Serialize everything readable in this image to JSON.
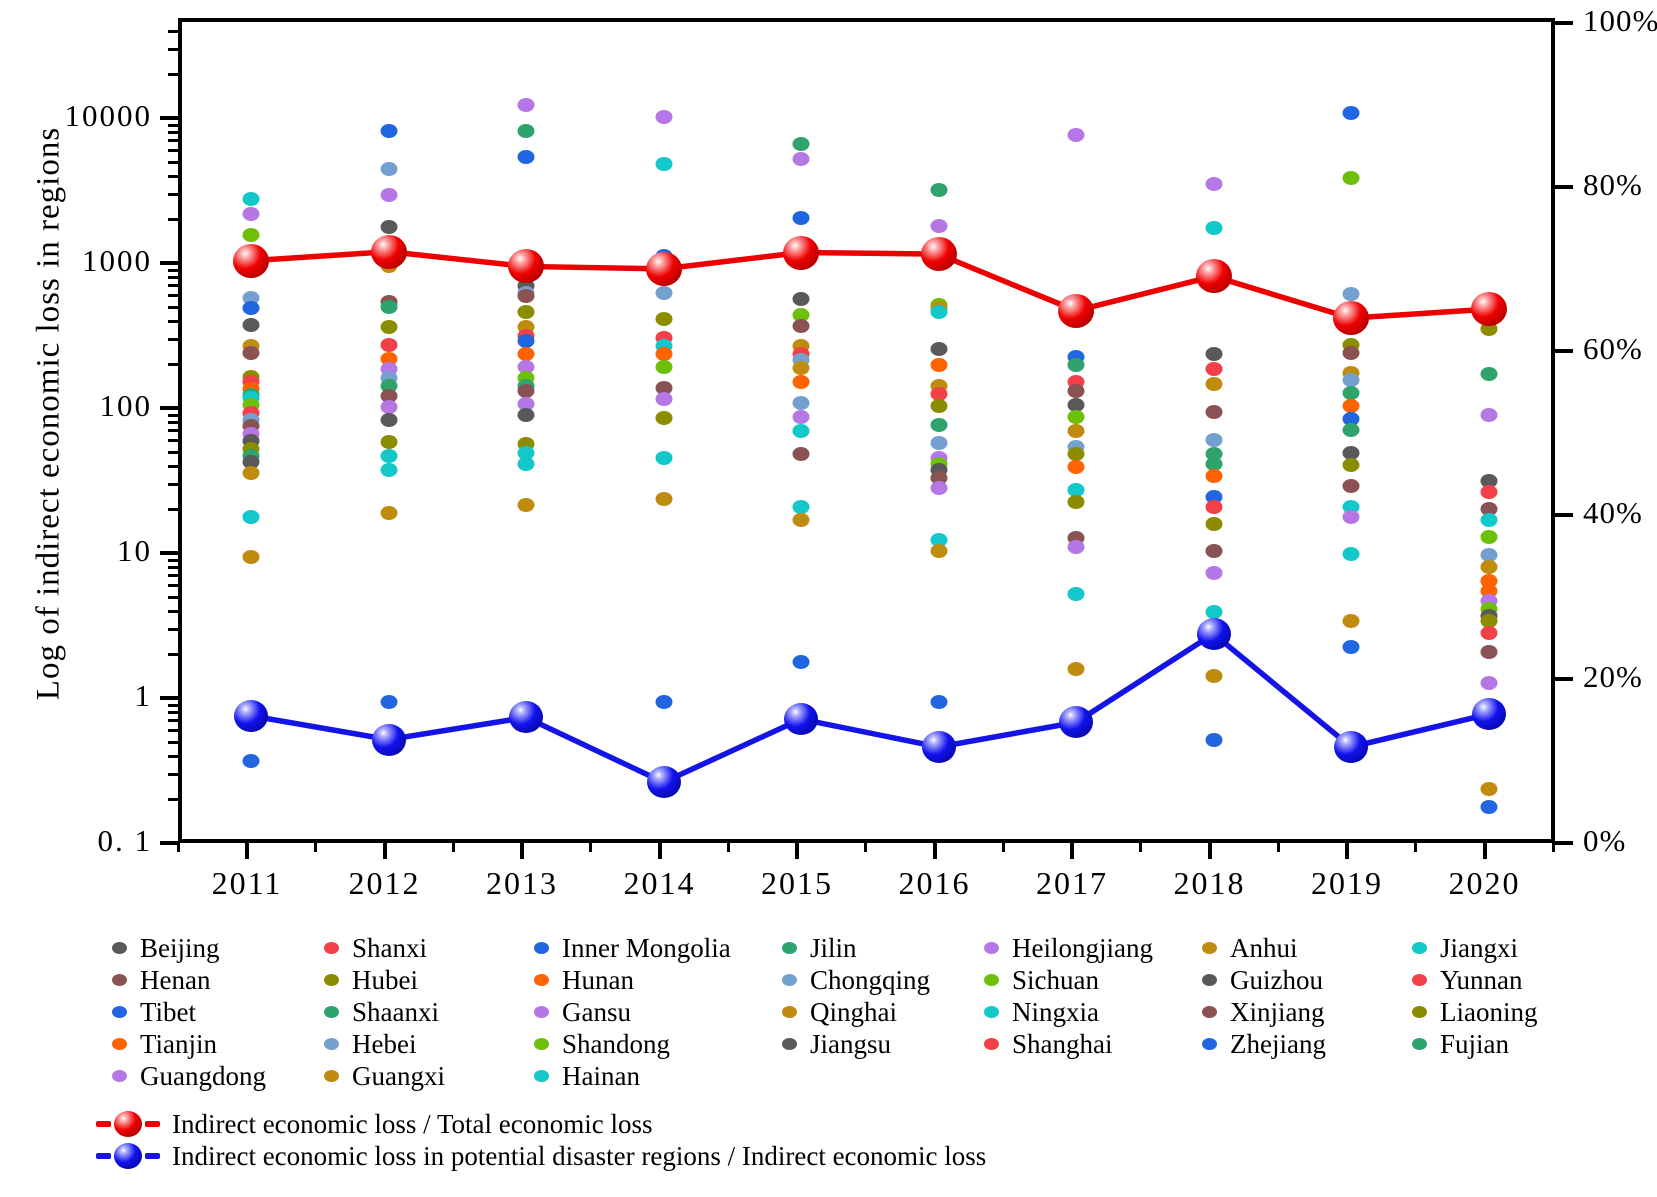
{
  "chart_data": {
    "type": "scatter+line",
    "years": [
      "2011",
      "2012",
      "2013",
      "2014",
      "2015",
      "2016",
      "2017",
      "2018",
      "2019",
      "2020"
    ],
    "left_axis": {
      "title": "Log of indirect economic loss in regions",
      "scale": "log10",
      "tick_labels": [
        "10000",
        "1000",
        "100",
        "10",
        "1",
        "0. 1"
      ],
      "tick_values": [
        10000,
        1000,
        100,
        10,
        1,
        0.1
      ],
      "range": [
        0.1,
        50000
      ],
      "grid": false
    },
    "right_axis": {
      "tick_labels": [
        "100%",
        "80%",
        "60%",
        "40%",
        "20%",
        "0%"
      ],
      "tick_values": [
        100,
        80,
        60,
        40,
        20,
        0
      ],
      "range": [
        0,
        100
      ]
    },
    "palette": {
      "gray": "#595959",
      "red": "#f24048",
      "blue": "#2166e0",
      "green": "#2ea36c",
      "purple": "#b577e6",
      "gold": "#c08c10",
      "cyan": "#12c8c8",
      "brown": "#8a5252",
      "olive": "#8c8c00",
      "orange": "#ff6200",
      "steel": "#74a0d0",
      "ygreen": "#6cc00a",
      "line_red": "#ee0000",
      "line_blue": "#1414e6",
      "axis": "#000000"
    },
    "provinces": [
      {
        "name": "Beijing",
        "color": "gray"
      },
      {
        "name": "Shanxi",
        "color": "red"
      },
      {
        "name": "Inner Mongolia",
        "color": "blue"
      },
      {
        "name": "Jilin",
        "color": "green"
      },
      {
        "name": "Heilongjiang",
        "color": "purple"
      },
      {
        "name": "Anhui",
        "color": "gold"
      },
      {
        "name": "Jiangxi",
        "color": "cyan"
      },
      {
        "name": "Henan",
        "color": "brown"
      },
      {
        "name": "Hubei",
        "color": "olive"
      },
      {
        "name": "Hunan",
        "color": "orange"
      },
      {
        "name": "Chongqing",
        "color": "steel"
      },
      {
        "name": "Sichuan",
        "color": "ygreen"
      },
      {
        "name": "Guizhou",
        "color": "gray"
      },
      {
        "name": "Yunnan",
        "color": "red"
      },
      {
        "name": "Tibet",
        "color": "blue"
      },
      {
        "name": "Shaanxi",
        "color": "green"
      },
      {
        "name": "Gansu",
        "color": "purple"
      },
      {
        "name": "Qinghai",
        "color": "gold"
      },
      {
        "name": "Ningxia",
        "color": "cyan"
      },
      {
        "name": "Xinjiang",
        "color": "brown"
      },
      {
        "name": "Liaoning",
        "color": "olive"
      },
      {
        "name": "Tianjin",
        "color": "orange"
      },
      {
        "name": "Hebei",
        "color": "steel"
      },
      {
        "name": "Shandong",
        "color": "ygreen"
      },
      {
        "name": "Jiangsu",
        "color": "gray"
      },
      {
        "name": "Shanghai",
        "color": "red"
      },
      {
        "name": "Zhejiang",
        "color": "blue"
      },
      {
        "name": "Fujian",
        "color": "green"
      },
      {
        "name": "Guangdong",
        "color": "purple"
      },
      {
        "name": "Guangxi",
        "color": "gold"
      },
      {
        "name": "Hainan",
        "color": "cyan"
      }
    ],
    "scatter_points": {
      "2011": [
        [
          "cyan",
          2950
        ],
        [
          "purple",
          2330
        ],
        [
          "ygreen",
          1660
        ],
        [
          "steel",
          610
        ],
        [
          "blue",
          520
        ],
        [
          "gray",
          400
        ],
        [
          "gold",
          285
        ],
        [
          "brown",
          255
        ],
        [
          "olive",
          175
        ],
        [
          "red",
          160
        ],
        [
          "orange",
          145
        ],
        [
          "green",
          132
        ],
        [
          "cyan",
          124
        ],
        [
          "ygreen",
          112
        ],
        [
          "red",
          98
        ],
        [
          "steel",
          88
        ],
        [
          "brown",
          80
        ],
        [
          "purple",
          70
        ],
        [
          "gray",
          63
        ],
        [
          "olive",
          56
        ],
        [
          "green",
          50
        ],
        [
          "gray",
          45
        ],
        [
          "gold",
          38
        ],
        [
          "cyan",
          19
        ],
        [
          "gold",
          10
        ],
        [
          "blue",
          0.39
        ]
      ],
      "2012": [
        [
          "blue",
          8700
        ],
        [
          "steel",
          4750
        ],
        [
          "purple",
          3130
        ],
        [
          "gray",
          1880
        ],
        [
          "gold",
          1010
        ],
        [
          "brown",
          570
        ],
        [
          "green",
          530
        ],
        [
          "olive",
          385
        ],
        [
          "red",
          290
        ],
        [
          "orange",
          232
        ],
        [
          "purple",
          197
        ],
        [
          "steel",
          172
        ],
        [
          "green",
          150
        ],
        [
          "brown",
          128
        ],
        [
          "purple",
          108
        ],
        [
          "gray",
          88
        ],
        [
          "olive",
          62
        ],
        [
          "cyan",
          50
        ],
        [
          "cyan",
          40
        ],
        [
          "gold",
          20
        ],
        [
          "blue",
          1.0
        ]
      ],
      "2013": [
        [
          "purple",
          13100
        ],
        [
          "green",
          8700
        ],
        [
          "blue",
          5700
        ],
        [
          "gray",
          740
        ],
        [
          "steel",
          660
        ],
        [
          "brown",
          630
        ],
        [
          "olive",
          490
        ],
        [
          "gold",
          385
        ],
        [
          "red",
          335
        ],
        [
          "blue",
          310
        ],
        [
          "orange",
          250
        ],
        [
          "purple",
          203
        ],
        [
          "ygreen",
          172
        ],
        [
          "green",
          152
        ],
        [
          "brown",
          140
        ],
        [
          "purple",
          113
        ],
        [
          "gray",
          95
        ],
        [
          "olive",
          60
        ],
        [
          "cyan",
          52
        ],
        [
          "cyan",
          44
        ],
        [
          "gold",
          23
        ]
      ],
      "2014": [
        [
          "purple",
          10800
        ],
        [
          "cyan",
          5100
        ],
        [
          "blue",
          1200
        ],
        [
          "steel",
          660
        ],
        [
          "olive",
          440
        ],
        [
          "red",
          325
        ],
        [
          "cyan",
          285
        ],
        [
          "orange",
          250
        ],
        [
          "ygreen",
          203
        ],
        [
          "brown",
          147
        ],
        [
          "purple",
          122
        ],
        [
          "olive",
          91
        ],
        [
          "cyan",
          48
        ],
        [
          "gold",
          25
        ],
        [
          "blue",
          1.0
        ]
      ],
      "2015": [
        [
          "green",
          7000
        ],
        [
          "purple",
          5600
        ],
        [
          "blue",
          2170
        ],
        [
          "gray",
          600
        ],
        [
          "ygreen",
          470
        ],
        [
          "brown",
          390
        ],
        [
          "gold",
          285
        ],
        [
          "red",
          250
        ],
        [
          "steel",
          228
        ],
        [
          "gold",
          200
        ],
        [
          "orange",
          160
        ],
        [
          "steel",
          115
        ],
        [
          "purple",
          92
        ],
        [
          "cyan",
          74
        ],
        [
          "brown",
          51
        ],
        [
          "cyan",
          22
        ],
        [
          "gold",
          18
        ],
        [
          "blue",
          1.9
        ]
      ],
      "2016": [
        [
          "green",
          3390
        ],
        [
          "purple",
          1920
        ],
        [
          "ygreen",
          550
        ],
        [
          "gold",
          520
        ],
        [
          "cyan",
          490
        ],
        [
          "gray",
          270
        ],
        [
          "orange",
          212
        ],
        [
          "gold",
          152
        ],
        [
          "red",
          134
        ],
        [
          "olive",
          110
        ],
        [
          "green",
          81
        ],
        [
          "steel",
          61
        ],
        [
          "purple",
          48
        ],
        [
          "ygreen",
          44
        ],
        [
          "gray",
          40
        ],
        [
          "brown",
          35
        ],
        [
          "purple",
          30
        ],
        [
          "cyan",
          13
        ],
        [
          "gold",
          11
        ],
        [
          "blue",
          1.0
        ]
      ],
      "2017": [
        [
          "purple",
          8100
        ],
        [
          "blue",
          238
        ],
        [
          "green",
          212
        ],
        [
          "red",
          162
        ],
        [
          "brown",
          140
        ],
        [
          "gray",
          112
        ],
        [
          "ygreen",
          92
        ],
        [
          "gold",
          74
        ],
        [
          "steel",
          57
        ],
        [
          "olive",
          51
        ],
        [
          "orange",
          42
        ],
        [
          "cyan",
          29
        ],
        [
          "olive",
          24
        ],
        [
          "brown",
          13.5
        ],
        [
          "purple",
          11.7
        ],
        [
          "cyan",
          5.6
        ],
        [
          "gold",
          1.7
        ]
      ],
      "2018": [
        [
          "purple",
          3730
        ],
        [
          "cyan",
          1860
        ],
        [
          "gray",
          250
        ],
        [
          "red",
          197
        ],
        [
          "gold",
          157
        ],
        [
          "brown",
          100
        ],
        [
          "steel",
          64
        ],
        [
          "green",
          51
        ],
        [
          "green",
          44
        ],
        [
          "orange",
          36
        ],
        [
          "blue",
          26
        ],
        [
          "red",
          22
        ],
        [
          "olive",
          17
        ],
        [
          "brown",
          11
        ],
        [
          "purple",
          7.8
        ],
        [
          "cyan",
          4.2
        ],
        [
          "gold",
          1.5
        ],
        [
          "blue",
          0.55
        ]
      ],
      "2019": [
        [
          "blue",
          11500
        ],
        [
          "ygreen",
          4100
        ],
        [
          "steel",
          650
        ],
        [
          "olive",
          290
        ],
        [
          "brown",
          255
        ],
        [
          "gold",
          185
        ],
        [
          "steel",
          165
        ],
        [
          "green",
          135
        ],
        [
          "orange",
          110
        ],
        [
          "blue",
          90
        ],
        [
          "green",
          75
        ],
        [
          "gray",
          52
        ],
        [
          "olive",
          43
        ],
        [
          "brown",
          31
        ],
        [
          "cyan",
          22
        ],
        [
          "purple",
          19
        ],
        [
          "cyan",
          10.5
        ],
        [
          "gold",
          3.6
        ],
        [
          "blue",
          2.4
        ]
      ],
      "2020": [
        [
          "olive",
          375
        ],
        [
          "green",
          182
        ],
        [
          "purple",
          96
        ],
        [
          "gray",
          33.5
        ],
        [
          "red",
          28
        ],
        [
          "brown",
          21.5
        ],
        [
          "cyan",
          18
        ],
        [
          "ygreen",
          13.8
        ],
        [
          "steel",
          10.3
        ],
        [
          "gold",
          8.5
        ],
        [
          "orange",
          6.8
        ],
        [
          "orange",
          5.8
        ],
        [
          "purple",
          5.0
        ],
        [
          "ygreen",
          4.4
        ],
        [
          "gray",
          3.9
        ],
        [
          "olive",
          3.6
        ],
        [
          "red",
          3.0
        ],
        [
          "brown",
          2.2
        ],
        [
          "purple",
          1.35
        ],
        [
          "gold",
          0.25
        ],
        [
          "blue",
          0.19
        ]
      ]
    },
    "series": [
      {
        "name": "Indirect economic loss / Total economic loss",
        "color_key": "line_red",
        "axis": "right",
        "pct": [
          71.5,
          72.6,
          70.8,
          70.5,
          72.5,
          72.3,
          65.4,
          69.6,
          64.5,
          65.6
        ]
      },
      {
        "name": "Indirect economic loss in potential disaster regions / Indirect economic loss",
        "color_key": "line_blue",
        "axis": "right",
        "pct": [
          16.0,
          13.1,
          15.8,
          7.9,
          15.6,
          12.2,
          15.2,
          26.0,
          12.2,
          16.2
        ]
      }
    ]
  }
}
